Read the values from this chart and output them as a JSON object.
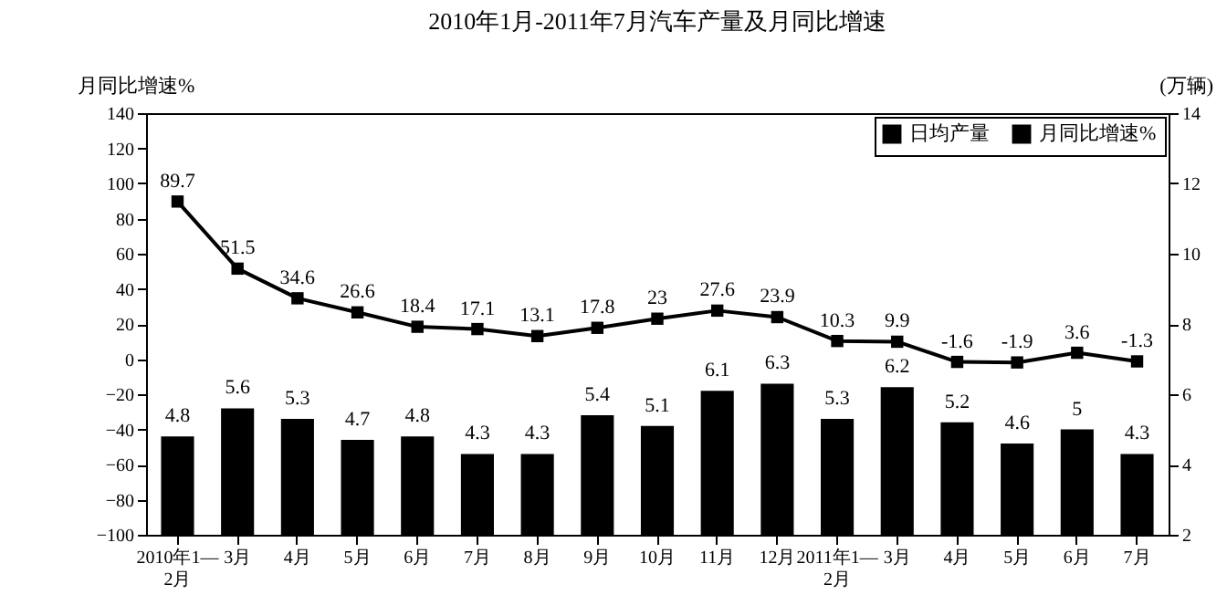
{
  "chart_data": {
    "type": "bar",
    "title": "2010年1月-2011年7月汽车产量及月同比增速",
    "ylabel": "月同比增速%",
    "y2label": "(万辆)",
    "categories": [
      "2010年1—2月",
      "3月",
      "4月",
      "5月",
      "6月",
      "7月",
      "8月",
      "9月",
      "10月",
      "11月",
      "12月",
      "2011年1—2月",
      "3月",
      "4月",
      "5月",
      "6月",
      "7月"
    ],
    "series": [
      {
        "name": "日均产量",
        "axis": "y2",
        "color": "#000000",
        "values": [
          4.8,
          5.6,
          5.3,
          4.7,
          4.8,
          4.3,
          4.3,
          5.4,
          5.1,
          6.1,
          6.3,
          5.3,
          6.2,
          5.2,
          4.6,
          5,
          4.3
        ]
      },
      {
        "name": "月同比增速%",
        "type": "line",
        "color": "#000000",
        "values": [
          89.7,
          51.5,
          34.6,
          26.6,
          18.4,
          17.1,
          13.1,
          17.8,
          23,
          27.6,
          23.9,
          10.3,
          9.9,
          -1.6,
          -1.9,
          3.6,
          -1.3
        ]
      }
    ],
    "ylim": [
      -100,
      140
    ],
    "yticks": [
      -100,
      -80,
      -60,
      -40,
      -20,
      0,
      20,
      40,
      60,
      80,
      100,
      120,
      140
    ],
    "y2lim": [
      2,
      14
    ],
    "y2ticks": [
      2,
      4,
      6,
      8,
      10,
      12,
      14
    ],
    "data_labels": true,
    "legend": "top right",
    "marker": "square"
  }
}
